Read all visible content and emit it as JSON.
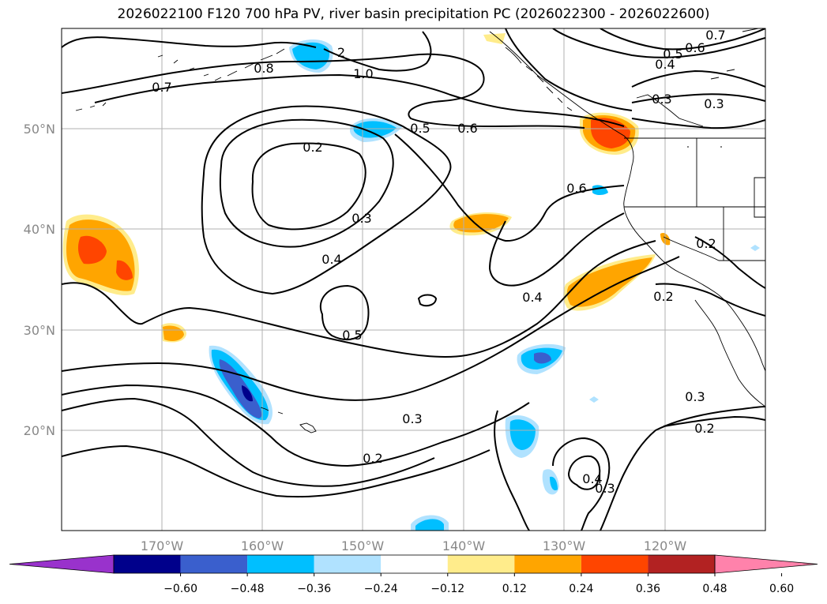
{
  "title": "2026022100 F120 700 hPa PV, river basin precipitation PC (2026022300 - 2026022600)",
  "map": {
    "lat_labels": [
      "50°N",
      "40°N",
      "30°N",
      "20°N"
    ],
    "lon_labels": [
      "170°W",
      "160°W",
      "150°W",
      "140°W",
      "130°W",
      "120°W"
    ],
    "contour_labels": {
      "c1": "2",
      "c2": "0.8",
      "c3": "1.0",
      "c4": "0.7",
      "c5": "0.7",
      "c6": "0.6",
      "c7": "0.5",
      "c8": "0.4",
      "c9": "0.3",
      "c10": "0.3",
      "c11": "0.5",
      "c12": "0.6",
      "c13": "0.2",
      "c14": "0.6",
      "c15": "0.3",
      "c16": "0.4",
      "c17": "0.5",
      "c18": "0.4",
      "c19": "0.2",
      "c20": "0.2",
      "c21": "0.3",
      "c22": "0.2",
      "c23": "0.3",
      "c24": "0.4",
      "c25": "0.3"
    }
  },
  "colorbar": {
    "ticks": [
      "−0.60",
      "−0.48",
      "−0.36",
      "−0.24",
      "−0.12",
      "0.12",
      "0.24",
      "0.36",
      "0.48",
      "0.60"
    ],
    "colors": [
      "#9932cc",
      "#00008b",
      "#3a5fcd",
      "#00bfff",
      "#b0e2ff",
      "#ffffff",
      "#ffec8b",
      "#ffa500",
      "#ff4500",
      "#b22222",
      "#ff82ab"
    ]
  }
}
